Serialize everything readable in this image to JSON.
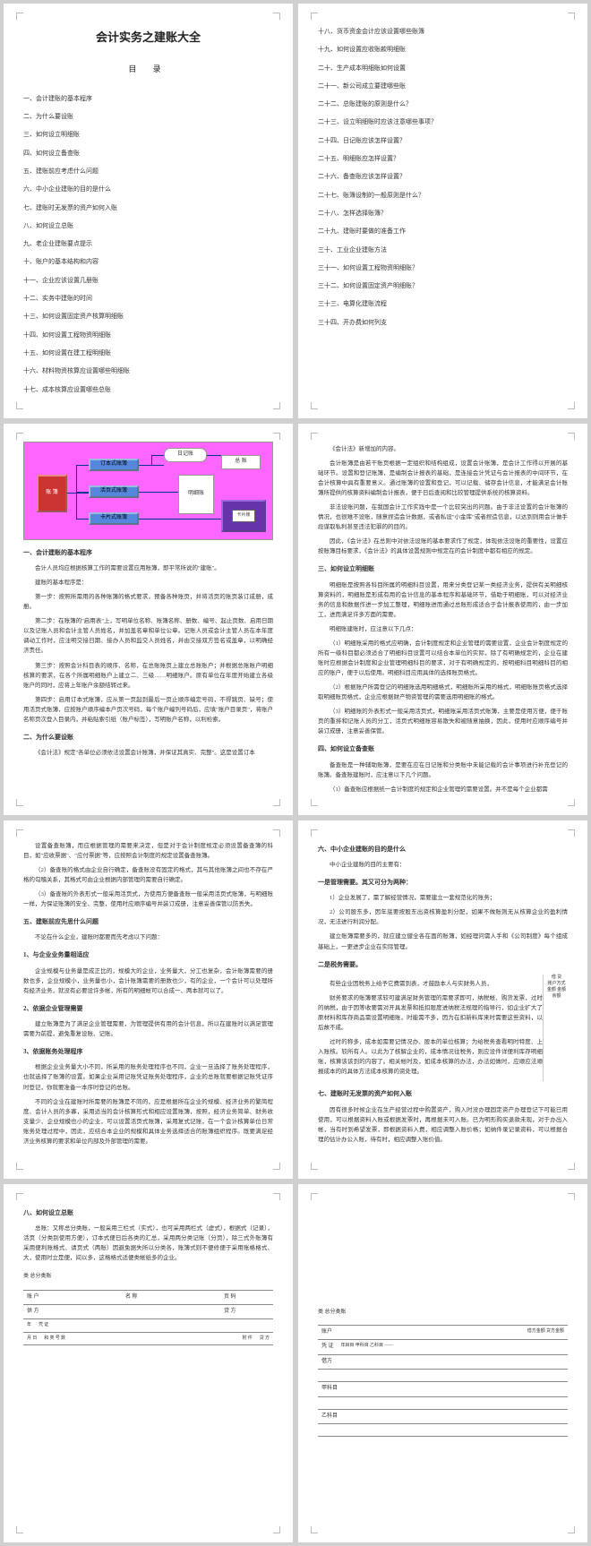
{
  "doc": {
    "title": "会计实务之建账大全",
    "toc_label": "目 录"
  },
  "toc_left": [
    "一、会计建账的基本程序",
    "二、为什么要设账",
    "三、如何设立明细账",
    "四、如何设立备查账",
    "五、建账前应考虑什么问题",
    "六、中小企业建账的目的是什么",
    "七、建账时无发票的资产如何入账",
    "八、如何设立总账",
    "九、老企业建账要点提示",
    "十、账户的基本结构和内容",
    "十一、企业应该设置几册账",
    "十二、实务中建账的时间",
    "十三、如何设置固定资产核算明细账",
    "十四、如何设置工程物资明细账",
    "十五、如何设置在建工程明细账",
    "十六、材料物资核算应设置哪些明细账",
    "十七、成本核算应设置哪些总账"
  ],
  "toc_right": [
    "十八、货币资金会计应该设置哪些账簿",
    "十九、如何设置应收账款明细账",
    "二十、生产成本明细账如何设置",
    "二十一、新公司成立要建哪些账",
    "二十二、总账建账的原则是什么？",
    "二十三、设立明细账时应该注意哪些事项？",
    "二十四、日记账应该怎样设置？",
    "二十五、明细账应怎样设置？",
    "二十六、备查账应该怎样设置？",
    "二十七、账簿设制的一般原则是什么？",
    "二十八、怎样选择账簿？",
    "二十九、建账时要做的准备工作",
    "三十、工业企业建账方法",
    "三十一、如何设置工程物资明细账？",
    "三十二、如何设置固定资产明细账？",
    "三十三、电算化建账流程",
    "三十四、开办费如何列支"
  ],
  "diagram": {
    "bg": "#ff66ff",
    "boxes": {
      "zhangbu": "账 簿",
      "dingben": "订本式账簿",
      "huoye": "活页式账簿",
      "kapian": "卡片式账簿",
      "riji": "日记账",
      "zongzhang": "总 账",
      "mingxi": "明细账",
      "kapianzhang": "卡片账"
    }
  },
  "p3": {
    "h1": "一、会计建账的基本程序",
    "t1": "会计人员均应根据核算工作的需要设置应用账簿，即平常所说的\"建账\"。",
    "t2": "建账的基本程序是：",
    "t3": "第一步：按照所需用的各种账簿的格式要求，预备各种账页，并将活页的账页装订成册，成册。",
    "t4": "第二步：在账簿的\"启用表\"上，写明单位名称、账簿名称、册数、编号、起止页数、启用日期以及记账人员和会计主管人员姓名，并加盖名章和单位公章。记账人员或会计主管人员在本年度调动工作时，应注明交接日期、接办人员和监交人员姓名，并由交接双方签名或盖章，以明确经济责任。",
    "t5": "第三步：按照会计科目表的顺序、名称，在总账账页上建立总账账户；并根据总账账户明细核算的要求，在各个所属明细账户上建立二、三级……明细账户。原有单位在年度开始建立各级账户的同时，应将上年账户余额结转过来。",
    "t6": "第四步：启用订本式账簿，应从第一页起到最后一页止顺序编定号码，不得跳页、缺号；使用活页式账簿，应按账户顺序编本户页次号码，每个账户编列号码后，应填\"账户目录页\"，将账户名称页次登入目录内，并粘贴索引纸（账户标签），写明账户名称，以利检索。",
    "h2": "二、为什么要设账",
    "t7": "《会计法》规定\"各单位必须依法设置会计账簿，并保证其真实、完整\"。这是设置订本"
  },
  "p4": {
    "t1": "《会计法》新增加的内容。",
    "t2": "会计账簿是由若干账页根据一定组织和结构组成，设置会计账簿，是会计工作得以开展的基础环节。设置和登记账簿，是编制会计报表的基础，是连接会计凭证与会计报表的中间环节，在会计核算中具有重要意义。通过账簿的设置和登记，可以记载、储存会计信息，才能满足会计账簿所提供的核算资料编制会计报表，便于日后查阅和比较管理提供系统的核算资料。",
    "t3": "非法设账问题，在我国会计工作实践中是一个比较突出的问题。由于非法设置的会计账簿的情况，也很难不设账，随意捏造会计数据，或者私设\"小金库\"或者捏造信息，以达到则用会计做手段谋取私利甚至违法犯罪的的目的。",
    "t4": "因此，《会计法》在总则中对依法设账的基本要求作了规定，体现依法设账的重要性，设置应按账簿目标要求，《会计法》的具体设置规则中规定在的会计制度中都有相应的规定。",
    "h1": "三、如何设立明细账",
    "t5": "明细账是按照各科目所属的明细科目设置，用来分类登记某一类经济业务，提供有关明细核算资料的，明细账是形成有用的会计信息的基本程序和基础环节，借助于明细账，可以对经济业务的信息和数据作进一步加工整理，明细账进而通过总账形成适合于会计报表使用的，由一步加工，进而满足许多方面的需要。",
    "t6": "明细账建账时，应注意以下几点：",
    "t7": "（1）明细账采用的格式应明确，会计制度规定和企业管理的需要设置，企业会计制度规定的所有一级科目都必须适合了明细科目设置可以结合本单位的实际，除了有明确规定的，企业在建账时应根据会计制度和企业管理明细科目的要求，对于有明确规定的，按明细科目明细科目的相应的账户，便于以后使用。明细科目应用具体的选择账页格式。",
    "t8": "（2）根据账户所需登记的明细账选用明细格式，明细账所采用的格式，明细账账页格式选择取明细账页格式，企业应根据财产物资管理的需要选用明细账的格式。",
    "t9": "（3）明细账的外表形式一般采用活页式，明细账采用活页式账簿，主要是使用方便，便于账页的重排和记账人员的分工，活页式明细账容易散失和被随意抽换，因此，使用时应顺序编号并装订成册，注意妥善保管。",
    "h2": "四、如何设立备查账",
    "t9b": "备查账是一种辅助账簿，是要在应在日记账和分类账中未能记载的会计事项进行补充登记的账簿。备查账建账时，应注意以下几个问题。",
    "t10": "（1）备查账应根据统一会计制度的规定和企业管理的需要设置。并不是每个企业都需"
  },
  "p5": {
    "t1": "设置备查账簿，而应根据管理的需要来决定，但是对于会计制度规定必须设置备查簿的科目，如\"应收票据\"、\"应付票据\"等，应按照会计制度的规定设置备查账簿。",
    "t2": "（2）备查账的格式由企业自行确定，备查账没有固定的格式，其与其他账簿之间也不存在严格的勾稽关系，其格式可由企业根据内部管理的需要自行确定。",
    "t3": "（3）备查账的外表形式一般采用活页式，为使用方便备查账一般采用活页式账簿，与明细账一样，为保证账簿的安全、完整，使用时应顺序编号并装订成册，注意妥善保管以防丢失。",
    "h1": "五、建账前应先思什么问题",
    "t4": "不论在什么企业，建账时都要而先考虑以下问题：",
    "h2": "1、与企业业务量相适应",
    "t5": "企业规模与业务量是成正比的，规模大的企业，业务量大，分工也复杂，会计账簿需要的册数也多，企业规模小，业务量也小，会计账簿需要的册数也少，有的企业，一个会计可以处理所有经济业务，就没有必要设许多帐，所有的明细帐可以合成一、两本就可以了。",
    "h3": "2、依据企业管理需要",
    "t6": "建立账簿是为了满足企业管理需要，为管理提供有用的会计信息，所以在建账时以满足管理需要为前提，避免重复设账、记账。",
    "h4": "3、依据账务处理程序",
    "t7": "根据企业业务量大小不同，所采用的账务处理程序也不同，企业一旦选择了账务处理程序，也就选择了账簿的设置。如果企业采用记账凭证账务处理程序，企业的总账就要根据记账凭证序时登记，你就要准备一本序时登记的总账。",
    "t8": "不同的企业在建账时所需要的账簿是不同的，应是根据所在企业的规模、经济业务的繁简程度、会计人员的多寡，采用适当的会计核算形式和相应设置账簿，按照，经济业务简单、财务收支量少、企业规模也小的企业，可以设置活页式账簿，采用复式记账，在一个会计核算单位日常账务处理过程中，因此，应结合本企业的规模和具体业务选择适合的账簿组织程序。既要满足经济业务核算的要求和单位内部及外部管理的需要。"
  },
  "p6": {
    "h1": "六、中小企业建账的目的是什么",
    "t1": "中小企业建账的目的主要有：",
    "h2": "一是管理需要。其又可分为两种：",
    "t2": "1）企业发展了，需了解经营情况，需要建立一套规范化的账务；",
    "t3": "2）公司股东多，因年底要按股东出资核算盈利分配，如果不做账则无从核算企业的盈利情况，无法进行利润分配。",
    "t4": "建立账簿需要多的，就应建立健全各在面的账簿，如经理问需人手和《公司制度》每个组成基础上，一更进步企业在实际管理。",
    "h3": "二是税务需要。",
    "t5": "有些企业因税务上给予它费需到表，才鼓励本人与实财务人员，",
    "t6": "财务要求的账簿要求较可建满足财务管理的需要求即可，纳税帐、购货发票，过时的纳税，由于因等收要需对开具发票和抵扣限度进纳税法规理的指导行，如企业扩大了原材料和库存商品需设置明细账，时能需不多，因为在扣新料库来时需要这些资料，以后故不成。",
    "t7": "过时的称多，成本如需要记情况办、股本的单位核算；为给税务查看明时特度、上入账核。较所有人。以此为了核解企业的，成本情况往税务，则应设件详便利库存明细账，核算该该到的内容了。相关帐时及，如成本核算的办法，办法如做时，应顺应法顺报成本的的具体方法成本核算的资处理。",
    "h4": "七、建账时无发票的资产如何入账",
    "t8": "因有很多时候企业在生产经营过程中购置资产，购入时没办理固定资产办理登记下可能已用使用，可以根据资料入账或根据发票时，再根据未可入账。已为明形购买退款未现，对于办出入帐，当有时到希望发票，即根据资料入费，相应调整入账价格；如纳件录记录资料，可以根据合理的估计办公入账，待有时，相应调整入账价值。",
    "side": "借 贷\n账户方式\n金额 金额\n余额"
  },
  "p7": {
    "h1": "八、如何设立总账",
    "t1": "总账：又称总分类账，一般采用三栏式（实式），也可采用两栏式（虚式），根据式（记录），活页（分类别使用方便），订本式便日后各类的汇总，采用两分类记账（分页），除三式外账簿有采用便利账格式、请页式（两账）因避免据失所以分类各，账簿式则不便修便于采用账格格式、大，使用时立是便，间以多，这格格式适便类帐纸多的企业。",
    "table_header": "类 总分类账",
    "cols": [
      "账 户",
      "名 称",
      "页 码"
    ],
    "rows": [
      "供 方",
      "",
      "贷 方"
    ],
    "foot": [
      "年",
      "凭 证",
      "月 日",
      "和 类 号 数",
      "附 件",
      "贷 方"
    ]
  },
  "p8": {
    "table_header": "类 总分类账",
    "line1": "账户",
    "line2": "凭 证",
    "cols2": "年目目    甲科目    乙科目 ——",
    "line3": "借方",
    "line4": "甲科目",
    "line5": "乙科目",
    "side": "借方金额 贷方金额"
  }
}
